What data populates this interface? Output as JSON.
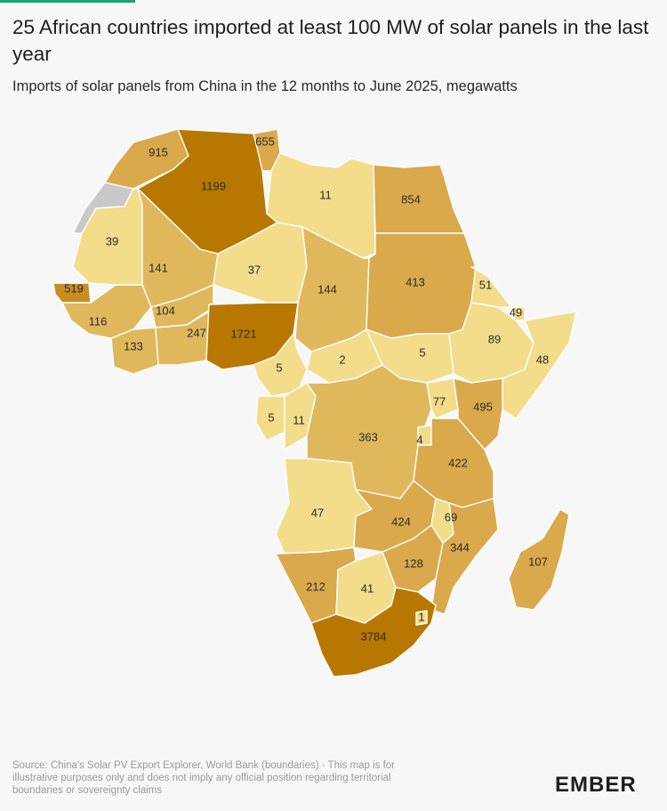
{
  "header": {
    "title": "25 African countries imported at least 100 MW of solar panels in the last year",
    "subtitle": "Imports of solar panels from China in the 12 months to June 2025, megawatts"
  },
  "colors": {
    "background": "#f7f7f7",
    "accent": "#1aa371",
    "no_data": "#c9c9c9",
    "scale_low": "#f3dc8a",
    "scale_mid": "#d9a94c",
    "scale_high": "#b87800"
  },
  "map": {
    "countries": [
      {
        "name": "Morocco",
        "value": "915"
      },
      {
        "name": "Tunisia",
        "value": "655"
      },
      {
        "name": "Algeria",
        "value": "1199"
      },
      {
        "name": "Libya",
        "value": "11"
      },
      {
        "name": "Egypt",
        "value": "854"
      },
      {
        "name": "Mauritania",
        "value": "39"
      },
      {
        "name": "Mali",
        "value": "141"
      },
      {
        "name": "Niger",
        "value": "37"
      },
      {
        "name": "Chad",
        "value": "144"
      },
      {
        "name": "Sudan",
        "value": "413"
      },
      {
        "name": "Eritrea",
        "value": "51"
      },
      {
        "name": "Senegal",
        "value": "519"
      },
      {
        "name": "Guinea",
        "value": "116"
      },
      {
        "name": "Burkina Faso",
        "value": "104"
      },
      {
        "name": "Ghana",
        "value": "133"
      },
      {
        "name": "Cote d'Ivoire",
        "value": "247"
      },
      {
        "name": "Nigeria",
        "value": "1721"
      },
      {
        "name": "Djibouti",
        "value": "49"
      },
      {
        "name": "Ethiopia",
        "value": "89"
      },
      {
        "name": "Somalia",
        "value": "48"
      },
      {
        "name": "Cameroon",
        "value": "5"
      },
      {
        "name": "Central African Republic",
        "value": "2"
      },
      {
        "name": "South Sudan",
        "value": "5"
      },
      {
        "name": "Gabon",
        "value": "5"
      },
      {
        "name": "Republic of the Congo",
        "value": "11"
      },
      {
        "name": "Uganda",
        "value": "77"
      },
      {
        "name": "Kenya",
        "value": "495"
      },
      {
        "name": "DR Congo",
        "value": "363"
      },
      {
        "name": "Rwanda",
        "value": "4"
      },
      {
        "name": "Tanzania",
        "value": "422"
      },
      {
        "name": "Angola",
        "value": "47"
      },
      {
        "name": "Zambia",
        "value": "424"
      },
      {
        "name": "Malawi",
        "value": "69"
      },
      {
        "name": "Mozambique",
        "value": "344"
      },
      {
        "name": "Zimbabwe",
        "value": "128"
      },
      {
        "name": "Madagascar",
        "value": "107"
      },
      {
        "name": "Namibia",
        "value": "212"
      },
      {
        "name": "Botswana",
        "value": "41"
      },
      {
        "name": "Eswatini",
        "value": "1"
      },
      {
        "name": "South Africa",
        "value": "3784"
      }
    ]
  },
  "footer": {
    "source": "Source: China's Solar PV Export Explorer, World Bank (boundaries) · This map is for illustrative purposes only and does not imply any official position regarding territorial boundaries or sovereignty claims",
    "logo": "EMBER"
  }
}
